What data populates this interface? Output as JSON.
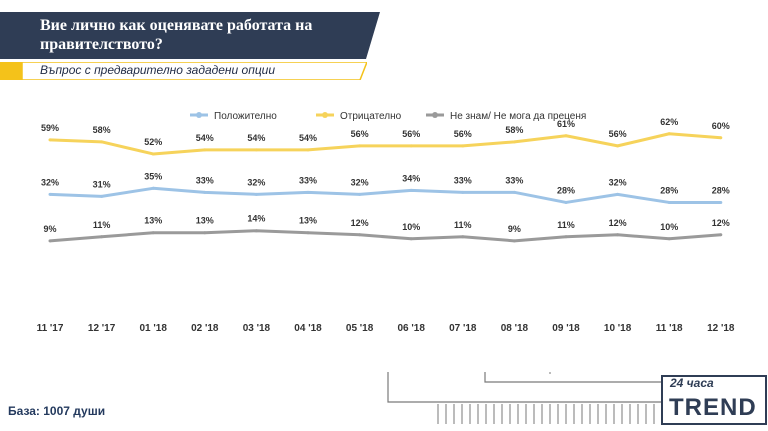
{
  "header": {
    "title": "Вие лично как оценявате работата на правителството?",
    "subtitle": "Въпрос с предварително зададени опции"
  },
  "footer": {
    "base": "База: 1007 души"
  },
  "logo": {
    "text_top": "24 часа",
    "text_main": "TREND"
  },
  "colors": {
    "navy": "#2f3d55",
    "yellow": "#f4c21a",
    "blue": "#9dc3e6",
    "gold": "#f6d35b",
    "gray": "#9a9a9a"
  },
  "chart_data": {
    "type": "line",
    "categories": [
      "11 '17",
      "12 '17",
      "01 '18",
      "02 '18",
      "03 '18",
      "04 '18",
      "05 '18",
      "06 '18",
      "07 '18",
      "08 '18",
      "09 '18",
      "10 '18",
      "11 '18",
      "12 '18"
    ],
    "series": [
      {
        "name": "Положително",
        "color": "#9dc3e6",
        "values": [
          32,
          31,
          35,
          33,
          32,
          33,
          32,
          34,
          33,
          33,
          28,
          32,
          28,
          28
        ]
      },
      {
        "name": "Отрицателно",
        "color": "#f6d35b",
        "values": [
          59,
          58,
          52,
          54,
          54,
          54,
          56,
          56,
          56,
          58,
          61,
          56,
          62,
          60
        ]
      },
      {
        "name": "Не знам/ Не мога да преценя",
        "color": "#9a9a9a",
        "values": [
          9,
          11,
          13,
          13,
          14,
          13,
          12,
          10,
          11,
          9,
          11,
          12,
          10,
          12
        ]
      }
    ],
    "value_suffix": "%",
    "legend": "top-center",
    "grid": false
  }
}
